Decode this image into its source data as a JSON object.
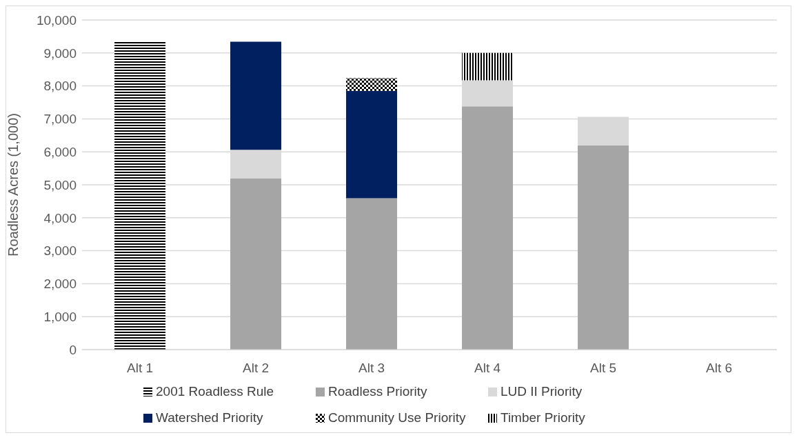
{
  "chart_data": {
    "type": "bar",
    "stacked": true,
    "ylabel": "Roadless Acres (1,000)",
    "categories": [
      "Alt 1",
      "Alt 2",
      "Alt 3",
      "Alt 4",
      "Alt 5",
      "Alt 6"
    ],
    "series": [
      {
        "name": "2001 Roadless Rule",
        "color": "#000000",
        "values": [
          9370,
          null,
          null,
          null,
          null,
          null
        ]
      },
      {
        "name": "Roadless Priority",
        "color": "#a5a5a5",
        "values": [
          null,
          5200,
          4590,
          7380,
          6200,
          null
        ]
      },
      {
        "name": "LUD II Priority",
        "color": "#d9d9d9",
        "values": [
          null,
          860,
          null,
          790,
          860,
          null
        ]
      },
      {
        "name": "Watershed Priority",
        "color": "#002060",
        "values": [
          null,
          3280,
          3260,
          null,
          null,
          null
        ]
      },
      {
        "name": "Community Use Priority",
        "color": "#000000",
        "values": [
          null,
          null,
          390,
          null,
          null,
          null
        ]
      },
      {
        "name": "Timber Priority",
        "color": "#000000",
        "values": [
          null,
          null,
          null,
          830,
          null,
          null
        ]
      }
    ],
    "ylim": [
      0,
      10000
    ],
    "yticks": [
      0,
      {
        "value": 1000,
        "label": "1,000"
      },
      {
        "value": 2000,
        "label": "2,000"
      },
      {
        "value": 3000,
        "label": "3,000"
      },
      {
        "value": 4000,
        "label": "4,000"
      },
      {
        "value": 5000,
        "label": "5,000"
      },
      {
        "value": 6000,
        "label": "6,000"
      },
      {
        "value": 7000,
        "label": "7,000"
      },
      {
        "value": 8000,
        "label": "8,000"
      },
      {
        "value": 9000,
        "label": "9,000"
      },
      {
        "value": 10000,
        "label": "10,000"
      }
    ],
    "grid": "y",
    "legend": "bottom"
  }
}
